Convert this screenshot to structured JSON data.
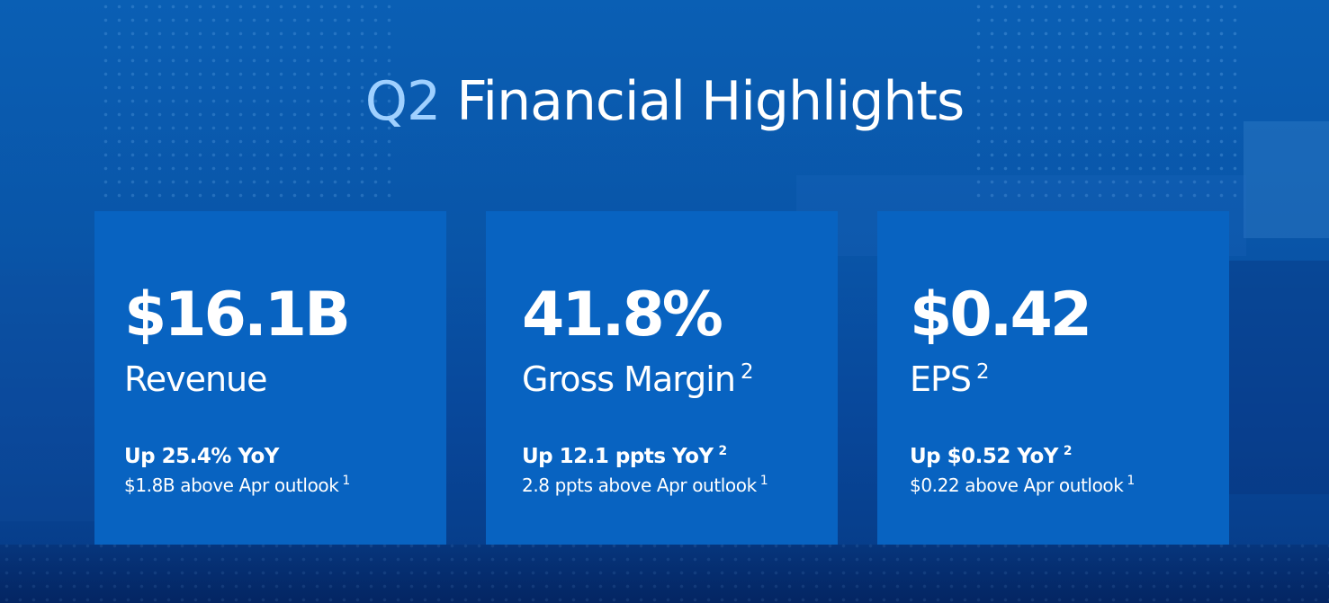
{
  "slide": {
    "title_prefix": "Q2",
    "title_rest": "Financial Highlights"
  },
  "cards": [
    {
      "metric": "$16.1B",
      "label": "Revenue",
      "label_footnote": "",
      "change": "Up 25.4% YoY",
      "change_footnote": "",
      "outlook": "$1.8B above Apr outlook",
      "outlook_footnote": "1"
    },
    {
      "metric": "41.8%",
      "label": "Gross Margin",
      "label_footnote": "2",
      "change": "Up 12.1 ppts YoY",
      "change_footnote": "2",
      "outlook": "2.8 ppts above Apr outlook",
      "outlook_footnote": "1"
    },
    {
      "metric": "$0.42",
      "label": "EPS",
      "label_footnote": "2",
      "change": "Up $0.52 YoY",
      "change_footnote": "2",
      "outlook": "$0.22 above Apr outlook",
      "outlook_footnote": "1"
    }
  ],
  "colors": {
    "background": "#0a5fb4",
    "card": "#0863c1",
    "title_accent": "#9fd0ff",
    "text": "#ffffff"
  }
}
